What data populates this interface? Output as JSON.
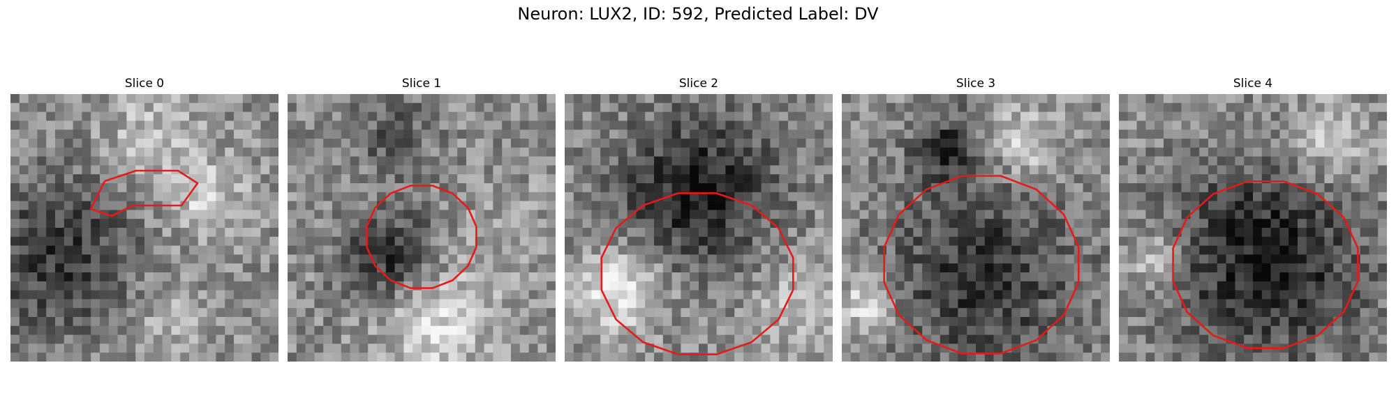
{
  "figure": {
    "title": "Neuron: LUX2, ID: 592, Predicted Label: DV",
    "contour_color": "#e61a1a",
    "colormap": "gray",
    "image_grid": [
      30,
      30
    ]
  },
  "panels": [
    {
      "title": "Slice 0"
    },
    {
      "title": "Slice 1"
    },
    {
      "title": "Slice 2"
    },
    {
      "title": "Slice 3"
    },
    {
      "title": "Slice 4"
    }
  ]
}
